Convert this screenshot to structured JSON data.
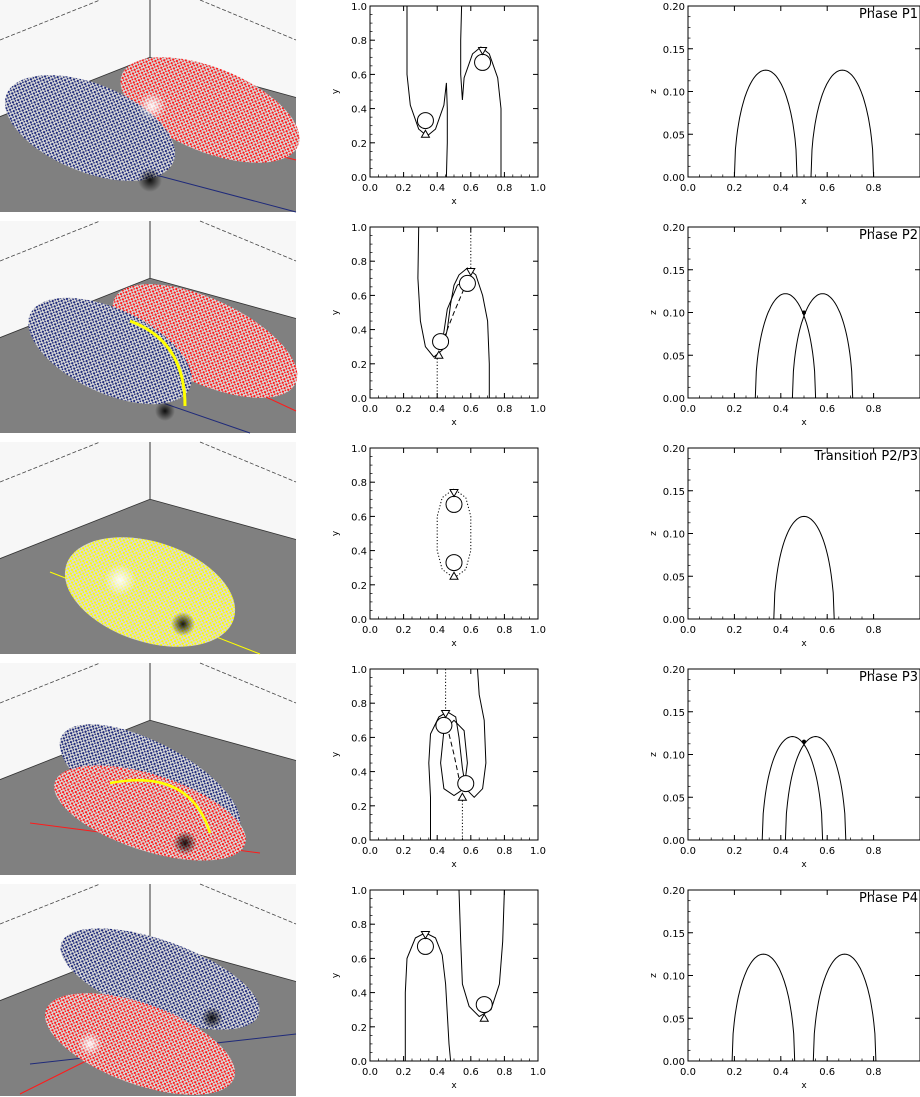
{
  "rows": [
    {
      "label": "Phase P1",
      "scene": "separate",
      "left_color": "#1f2a7a",
      "right_color": "#ff1a1a"
    },
    {
      "label": "Phase P2",
      "scene": "touching",
      "left_color": "#1f2a7a",
      "right_color": "#ff1a1a"
    },
    {
      "label": "Transition P2/P3",
      "scene": "merged",
      "left_color": "#ffff00",
      "right_color": "#ffff00"
    },
    {
      "label": "Phase P3",
      "scene": "crossed",
      "left_color": "#1f2a7a",
      "right_color": "#ff1a1a"
    },
    {
      "label": "Phase P4",
      "scene": "swapped",
      "left_color": "#1f2a7a",
      "right_color": "#ff1a1a"
    }
  ],
  "xy_axes": {
    "xlabel": "x",
    "ylabel": "y",
    "xticks": [
      "0.0",
      "0.2",
      "0.4",
      "0.6",
      "0.8",
      "1.0"
    ],
    "yticks": [
      "0.0",
      "0.2",
      "0.4",
      "0.6",
      "0.8",
      "1.0"
    ],
    "xlim": [
      0,
      1
    ],
    "ylim": [
      0,
      1
    ]
  },
  "xz_axes": {
    "xlabel": "x",
    "ylabel": "z",
    "xticks": [
      "0.0",
      "0.2",
      "0.4",
      "0.6",
      "0.8"
    ],
    "yticks": [
      "0.00",
      "0.05",
      "0.10",
      "0.15",
      "0.20"
    ],
    "xlim": [
      0,
      1
    ],
    "ylim": [
      0,
      0.2
    ]
  },
  "chart_data": [
    {
      "type": "line",
      "panel": "xz",
      "row": 1,
      "title": "Phase P1",
      "series": [
        {
          "arches": [
            [
              0.2,
              0.47,
              0.125
            ],
            [
              0.53,
              0.8,
              0.125
            ]
          ]
        }
      ]
    },
    {
      "type": "line",
      "panel": "xz",
      "row": 2,
      "title": "Phase P2",
      "series": [
        {
          "arches": [
            [
              0.29,
              0.55,
              0.122
            ],
            [
              0.45,
              0.71,
              0.122
            ]
          ]
        }
      ],
      "crossing": [
        0.5,
        0.1
      ]
    },
    {
      "type": "line",
      "panel": "xz",
      "row": 3,
      "title": "Transition P2/P3",
      "series": [
        {
          "arches": [
            [
              0.37,
              0.63,
              0.12
            ]
          ]
        }
      ]
    },
    {
      "type": "line",
      "panel": "xz",
      "row": 4,
      "title": "Phase P3",
      "series": [
        {
          "arches": [
            [
              0.32,
              0.58,
              0.121
            ],
            [
              0.42,
              0.68,
              0.121
            ]
          ]
        }
      ],
      "crossing": [
        0.5,
        0.115
      ]
    },
    {
      "type": "line",
      "panel": "xz",
      "row": 5,
      "title": "Phase P4",
      "series": [
        {
          "arches": [
            [
              0.19,
              0.46,
              0.125
            ],
            [
              0.54,
              0.81,
              0.125
            ]
          ]
        }
      ]
    },
    {
      "type": "line",
      "panel": "xy",
      "row": 1,
      "curves": [
        {
          "style": "solid",
          "points": [
            [
              0.22,
              1.0
            ],
            [
              0.22,
              0.6
            ],
            [
              0.24,
              0.42
            ],
            [
              0.29,
              0.28
            ],
            [
              0.34,
              0.24
            ],
            [
              0.39,
              0.28
            ],
            [
              0.44,
              0.42
            ],
            [
              0.455,
              0.55
            ],
            [
              0.46,
              0.4
            ],
            [
              0.46,
              0.2
            ],
            [
              0.455,
              0.0
            ]
          ]
        },
        {
          "style": "solid",
          "points": [
            [
              0.545,
              1.0
            ],
            [
              0.54,
              0.8
            ],
            [
              0.54,
              0.6
            ],
            [
              0.55,
              0.45
            ],
            [
              0.56,
              0.58
            ],
            [
              0.61,
              0.72
            ],
            [
              0.66,
              0.76
            ],
            [
              0.71,
              0.72
            ],
            [
              0.76,
              0.58
            ],
            [
              0.78,
              0.4
            ],
            [
              0.78,
              0.0
            ]
          ]
        }
      ],
      "circles": [
        [
          0.33,
          0.33
        ],
        [
          0.67,
          0.67
        ]
      ],
      "tri_up": [
        [
          0.33,
          0.25
        ]
      ],
      "tri_down": [
        [
          0.67,
          0.74
        ]
      ]
    },
    {
      "type": "line",
      "panel": "xy",
      "row": 2,
      "curves": [
        {
          "style": "solid",
          "points": [
            [
              0.29,
              1.0
            ],
            [
              0.285,
              0.7
            ],
            [
              0.3,
              0.45
            ],
            [
              0.33,
              0.3
            ],
            [
              0.38,
              0.24
            ],
            [
              0.43,
              0.28
            ],
            [
              0.46,
              0.4
            ],
            [
              0.48,
              0.55
            ],
            [
              0.5,
              0.66
            ],
            [
              0.53,
              0.72
            ],
            [
              0.58,
              0.76
            ],
            [
              0.63,
              0.72
            ],
            [
              0.67,
              0.6
            ],
            [
              0.7,
              0.45
            ],
            [
              0.71,
              0.2
            ],
            [
              0.71,
              0.0
            ]
          ]
        },
        {
          "style": "solid",
          "points": [
            [
              0.43,
              0.32
            ],
            [
              0.46,
              0.52
            ],
            [
              0.52,
              0.66
            ],
            [
              0.56,
              0.68
            ]
          ]
        },
        {
          "style": "dashed",
          "points": [
            [
              0.44,
              0.35
            ],
            [
              0.5,
              0.5
            ],
            [
              0.56,
              0.64
            ]
          ]
        },
        {
          "style": "dotted",
          "points": [
            [
              0.4,
              0.0
            ],
            [
              0.4,
              0.26
            ]
          ]
        },
        {
          "style": "dotted",
          "points": [
            [
              0.6,
              0.76
            ],
            [
              0.6,
              1.0
            ]
          ]
        }
      ],
      "circles": [
        [
          0.42,
          0.33
        ],
        [
          0.58,
          0.67
        ]
      ],
      "tri_up": [
        [
          0.41,
          0.25
        ]
      ],
      "tri_down": [
        [
          0.6,
          0.74
        ]
      ]
    },
    {
      "type": "line",
      "panel": "xy",
      "row": 3,
      "curves": [
        {
          "style": "dotted",
          "points": [
            [
              0.5,
              0.76
            ],
            [
              0.43,
              0.71
            ],
            [
              0.4,
              0.6
            ],
            [
              0.4,
              0.4
            ],
            [
              0.43,
              0.29
            ],
            [
              0.5,
              0.24
            ],
            [
              0.57,
              0.29
            ],
            [
              0.6,
              0.4
            ],
            [
              0.6,
              0.6
            ],
            [
              0.57,
              0.71
            ],
            [
              0.5,
              0.76
            ]
          ]
        }
      ],
      "circles": [
        [
          0.5,
          0.67
        ],
        [
          0.5,
          0.33
        ]
      ],
      "tri_up": [
        [
          0.5,
          0.25
        ]
      ],
      "tri_down": [
        [
          0.5,
          0.74
        ]
      ]
    },
    {
      "type": "line",
      "panel": "xy",
      "row": 4,
      "curves": [
        {
          "style": "solid",
          "points": [
            [
              0.36,
              0.0
            ],
            [
              0.36,
              0.25
            ],
            [
              0.35,
              0.45
            ],
            [
              0.36,
              0.62
            ],
            [
              0.41,
              0.72
            ],
            [
              0.46,
              0.75
            ],
            [
              0.51,
              0.72
            ],
            [
              0.53,
              0.6
            ],
            [
              0.55,
              0.42
            ],
            [
              0.57,
              0.3
            ],
            [
              0.62,
              0.25
            ],
            [
              0.67,
              0.3
            ],
            [
              0.69,
              0.45
            ],
            [
              0.68,
              0.7
            ],
            [
              0.65,
              0.85
            ],
            [
              0.64,
              1.0
            ]
          ]
        },
        {
          "style": "solid",
          "points": [
            [
              0.44,
              0.64
            ],
            [
              0.42,
              0.45
            ],
            [
              0.44,
              0.3
            ],
            [
              0.5,
              0.26
            ],
            [
              0.56,
              0.3
            ],
            [
              0.58,
              0.45
            ],
            [
              0.56,
              0.64
            ],
            [
              0.5,
              0.7
            ],
            [
              0.44,
              0.64
            ]
          ]
        },
        {
          "style": "dashed",
          "points": [
            [
              0.47,
              0.62
            ],
            [
              0.5,
              0.5
            ],
            [
              0.53,
              0.36
            ]
          ]
        },
        {
          "style": "dotted",
          "points": [
            [
              0.45,
              0.75
            ],
            [
              0.45,
              1.0
            ]
          ]
        },
        {
          "style": "dotted",
          "points": [
            [
              0.55,
              0.0
            ],
            [
              0.55,
              0.25
            ]
          ]
        }
      ],
      "circles": [
        [
          0.44,
          0.67
        ],
        [
          0.57,
          0.33
        ]
      ],
      "tri_up": [
        [
          0.55,
          0.25
        ]
      ],
      "tri_down": [
        [
          0.45,
          0.74
        ]
      ]
    },
    {
      "type": "line",
      "panel": "xy",
      "row": 5,
      "curves": [
        {
          "style": "solid",
          "points": [
            [
              0.21,
              0.0
            ],
            [
              0.21,
              0.4
            ],
            [
              0.22,
              0.6
            ],
            [
              0.27,
              0.72
            ],
            [
              0.33,
              0.75
            ],
            [
              0.39,
              0.72
            ],
            [
              0.43,
              0.62
            ],
            [
              0.45,
              0.45
            ],
            [
              0.47,
              0.1
            ],
            [
              0.48,
              0.0
            ]
          ]
        },
        {
          "style": "solid",
          "points": [
            [
              0.53,
              1.0
            ],
            [
              0.54,
              0.7
            ],
            [
              0.55,
              0.45
            ],
            [
              0.59,
              0.32
            ],
            [
              0.65,
              0.26
            ],
            [
              0.72,
              0.3
            ],
            [
              0.77,
              0.45
            ],
            [
              0.79,
              0.7
            ],
            [
              0.8,
              1.0
            ]
          ]
        }
      ],
      "circles": [
        [
          0.33,
          0.67
        ],
        [
          0.68,
          0.33
        ]
      ],
      "tri_up": [
        [
          0.68,
          0.25
        ]
      ],
      "tri_down": [
        [
          0.33,
          0.74
        ]
      ]
    }
  ]
}
